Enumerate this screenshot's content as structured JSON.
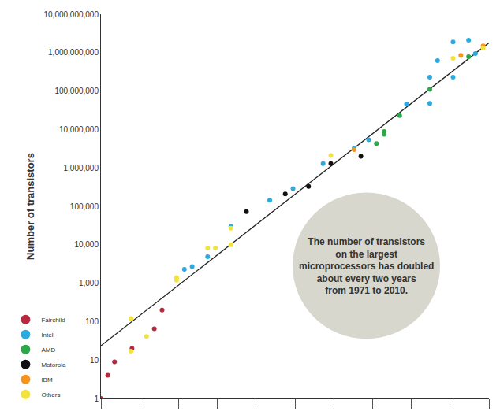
{
  "chart_data": {
    "type": "scatter",
    "y_label": "Number of transistors",
    "annotation": "The number of transistors\non the largest\nmicroprocessors has doubled\nabout every two years\nfrom 1971 to 2010.",
    "log": "y",
    "grid": false,
    "legend": "bottom left",
    "tick_labels": "y",
    "marker": "circle",
    "xlim": [
      1970,
      2010
    ],
    "xticks": [
      1970,
      1974,
      1978,
      1982,
      1986,
      1990,
      1994,
      1998,
      2002,
      2006,
      2010
    ],
    "ylim": [
      1,
      10000000000
    ],
    "yticks": [
      1,
      10,
      100,
      {
        "value": 1000,
        "label": "1,000"
      },
      {
        "value": 10000,
        "label": "10,000"
      },
      {
        "value": 100000,
        "label": "100,000"
      },
      {
        "value": 1000000,
        "label": "1,000,000"
      },
      {
        "value": 10000000,
        "label": "10,000,000"
      },
      {
        "value": 100000000,
        "label": "100,000,000"
      },
      {
        "value": 1000000000,
        "label": "1,000,000,000"
      },
      {
        "value": 10000000000,
        "label": "10,000,000,000"
      }
    ],
    "series": [
      {
        "name": "Fairchild",
        "color": "#b8283e",
        "x": [
          1970.0,
          1970.7,
          1971.4,
          1973.2,
          1975.5,
          1976.3
        ],
        "values": [
          1,
          4,
          9,
          20,
          65,
          200
        ]
      },
      {
        "name": "Intel",
        "color": "#29abe2",
        "x": [
          1978.6,
          1979.4,
          1981.0,
          1983.4,
          1987.4,
          1989.8,
          1992.9,
          1996.1,
          1997.6,
          2001.5,
          2003.9,
          2003.9,
          2004.7,
          2006.3,
          2006.3,
          2007.9,
          2008.6
        ],
        "values": [
          2300,
          2700,
          4900,
          30000,
          145000,
          290000,
          1300000,
          3200000,
          5400000,
          46000000,
          230000000,
          48000000,
          620000000,
          1900000000,
          230000000,
          2100000000,
          940000000
        ]
      },
      {
        "name": "AMD",
        "color": "#2ba84a",
        "x": [
          1998.4,
          1999.2,
          1999.2,
          2000.8,
          2003.9,
          2007.9
        ],
        "values": [
          4300000,
          7500000,
          8800000,
          23000000,
          110000000,
          780000000
        ]
      },
      {
        "name": "Motorola",
        "color": "#111111",
        "x": [
          1985.0,
          1989.0,
          1991.4,
          1993.7,
          1996.8
        ],
        "values": [
          73000,
          210000,
          330000,
          1300000,
          2000000
        ]
      },
      {
        "name": "IBM",
        "color": "#f7941d",
        "x": [
          1996.1,
          2007.1,
          2009.4
        ],
        "values": [
          3000000,
          850000000,
          1500000000
        ]
      },
      {
        "name": "Others",
        "color": "#f2e33b",
        "x": [
          1973.1,
          1973.1,
          1974.7,
          1977.8,
          1977.8,
          1981.0,
          1981.8,
          1983.4,
          1983.4,
          1993.7,
          2006.3,
          2009.4
        ],
        "values": [
          120,
          17,
          41,
          1400,
          1200,
          8200,
          8200,
          27000,
          10000,
          2100000,
          710000000,
          1300000000
        ]
      },
      {
        "type": "line",
        "color": "#222222",
        "x": [
          1970,
          2010
        ],
        "values": [
          23.5,
          1800000000
        ]
      }
    ]
  }
}
